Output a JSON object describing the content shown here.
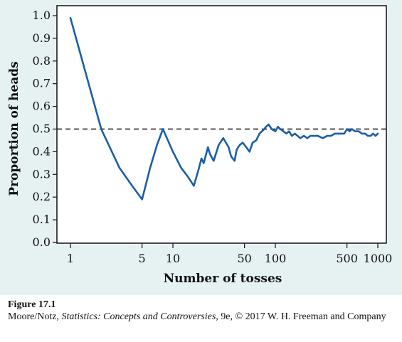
{
  "chart_data": {
    "type": "line",
    "xlabel": "Number of tosses",
    "ylabel": "Proportion of heads",
    "x_scale": "log",
    "xlim": [
      1,
      1000
    ],
    "ylim": [
      0.0,
      1.0
    ],
    "x_ticks": [
      1,
      5,
      10,
      50,
      100,
      500,
      1000
    ],
    "x_tick_labels": [
      "1",
      "5",
      "10",
      "50",
      "100",
      "500",
      "1000"
    ],
    "y_ticks": [
      0.0,
      0.1,
      0.2,
      0.3,
      0.4,
      0.5,
      0.6,
      0.7,
      0.8,
      0.9,
      1.0
    ],
    "y_tick_labels": [
      "0.0",
      "0.1",
      "0.2",
      "0.3",
      "0.4",
      "0.5",
      "0.6",
      "0.7",
      "0.8",
      "0.9",
      "1.0"
    ],
    "reference_line": {
      "y": 0.5,
      "style": "dashed"
    },
    "line_color": "#1a5ea8",
    "series": [
      {
        "x": [
          1,
          2,
          3,
          4,
          5,
          6,
          7,
          8,
          10,
          12,
          14,
          16,
          17,
          18,
          19,
          20,
          22,
          23,
          25,
          28,
          31,
          35,
          37,
          40,
          42,
          45,
          48,
          52,
          56,
          60,
          65,
          70,
          74,
          78,
          81,
          86,
          92,
          100,
          106,
          112,
          120,
          128,
          136,
          145,
          155,
          165,
          175,
          190,
          205,
          220,
          240,
          260,
          290,
          320,
          350,
          380,
          410,
          440,
          470,
          500,
          530,
          560,
          600,
          650,
          700,
          750,
          800,
          850,
          900,
          950,
          1000
        ],
        "y": [
          0.99,
          0.5,
          0.33,
          0.25,
          0.19,
          0.33,
          0.43,
          0.5,
          0.4,
          0.33,
          0.29,
          0.25,
          0.29,
          0.33,
          0.37,
          0.35,
          0.42,
          0.39,
          0.36,
          0.43,
          0.46,
          0.42,
          0.38,
          0.36,
          0.41,
          0.43,
          0.44,
          0.42,
          0.4,
          0.44,
          0.45,
          0.48,
          0.49,
          0.5,
          0.51,
          0.52,
          0.5,
          0.49,
          0.51,
          0.5,
          0.49,
          0.48,
          0.49,
          0.47,
          0.48,
          0.47,
          0.46,
          0.47,
          0.46,
          0.47,
          0.47,
          0.47,
          0.46,
          0.47,
          0.47,
          0.48,
          0.48,
          0.48,
          0.48,
          0.5,
          0.49,
          0.5,
          0.49,
          0.49,
          0.48,
          0.48,
          0.47,
          0.47,
          0.48,
          0.47,
          0.48
        ]
      }
    ]
  },
  "caption": {
    "label": "Figure 17.1",
    "text_before": "Moore/Notz, ",
    "book_title": "Statistics: Concepts and Controversies",
    "text_after": ", 9e, © 2017 W. H. Freeman and Company"
  }
}
